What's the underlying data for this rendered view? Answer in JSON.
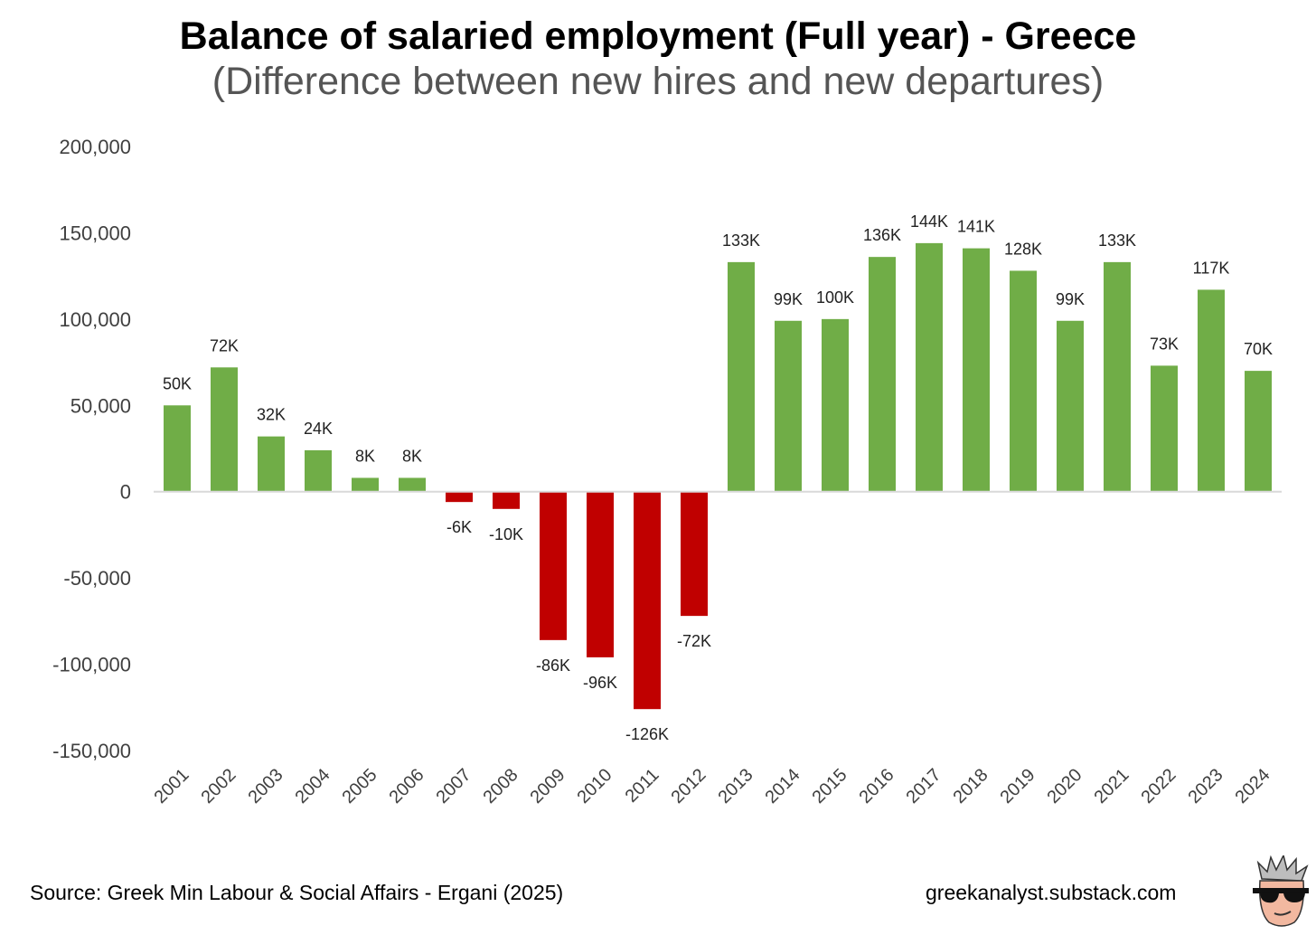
{
  "header": {
    "title": "Balance of salaried employment (Full year) - Greece",
    "subtitle": "(Difference between new hires and new departures)"
  },
  "footer": {
    "source": "Source: Greek Min Labour & Social Affairs - Ergani (2025)",
    "site": "greekanalyst.substack.com"
  },
  "colors": {
    "positive": "#70ad47",
    "negative": "#c00000",
    "axis_text": "#404040",
    "baseline": "#d9d9d9"
  },
  "chart_data": {
    "type": "bar",
    "title": "Balance of salaried employment (Full year) - Greece",
    "subtitle": "(Difference between new hires and new departures)",
    "categories": [
      "2001",
      "2002",
      "2003",
      "2004",
      "2005",
      "2006",
      "2007",
      "2008",
      "2009",
      "2010",
      "2011",
      "2012",
      "2013",
      "2014",
      "2015",
      "2016",
      "2017",
      "2018",
      "2019",
      "2020",
      "2021",
      "2022",
      "2023",
      "2024"
    ],
    "values": [
      50000,
      72000,
      32000,
      24000,
      8000,
      8000,
      -6000,
      -10000,
      -86000,
      -96000,
      -126000,
      -72000,
      133000,
      99000,
      100000,
      136000,
      144000,
      141000,
      128000,
      99000,
      133000,
      73000,
      117000,
      70000
    ],
    "data_labels": [
      "50K",
      "72K",
      "32K",
      "24K",
      "8K",
      "8K",
      "-6K",
      "-10K",
      "-86K",
      "-96K",
      "-126K",
      "-72K",
      "133K",
      "99K",
      "100K",
      "136K",
      "144K",
      "141K",
      "128K",
      "99K",
      "133K",
      "73K",
      "117K",
      "70K"
    ],
    "yticks": [
      "200,000",
      "150,000",
      "100,000",
      "50,000",
      "0",
      "-50,000",
      "-100,000",
      "-150,000"
    ],
    "ylim": [
      -150000,
      200000
    ],
    "grid": false,
    "legend": "none"
  }
}
